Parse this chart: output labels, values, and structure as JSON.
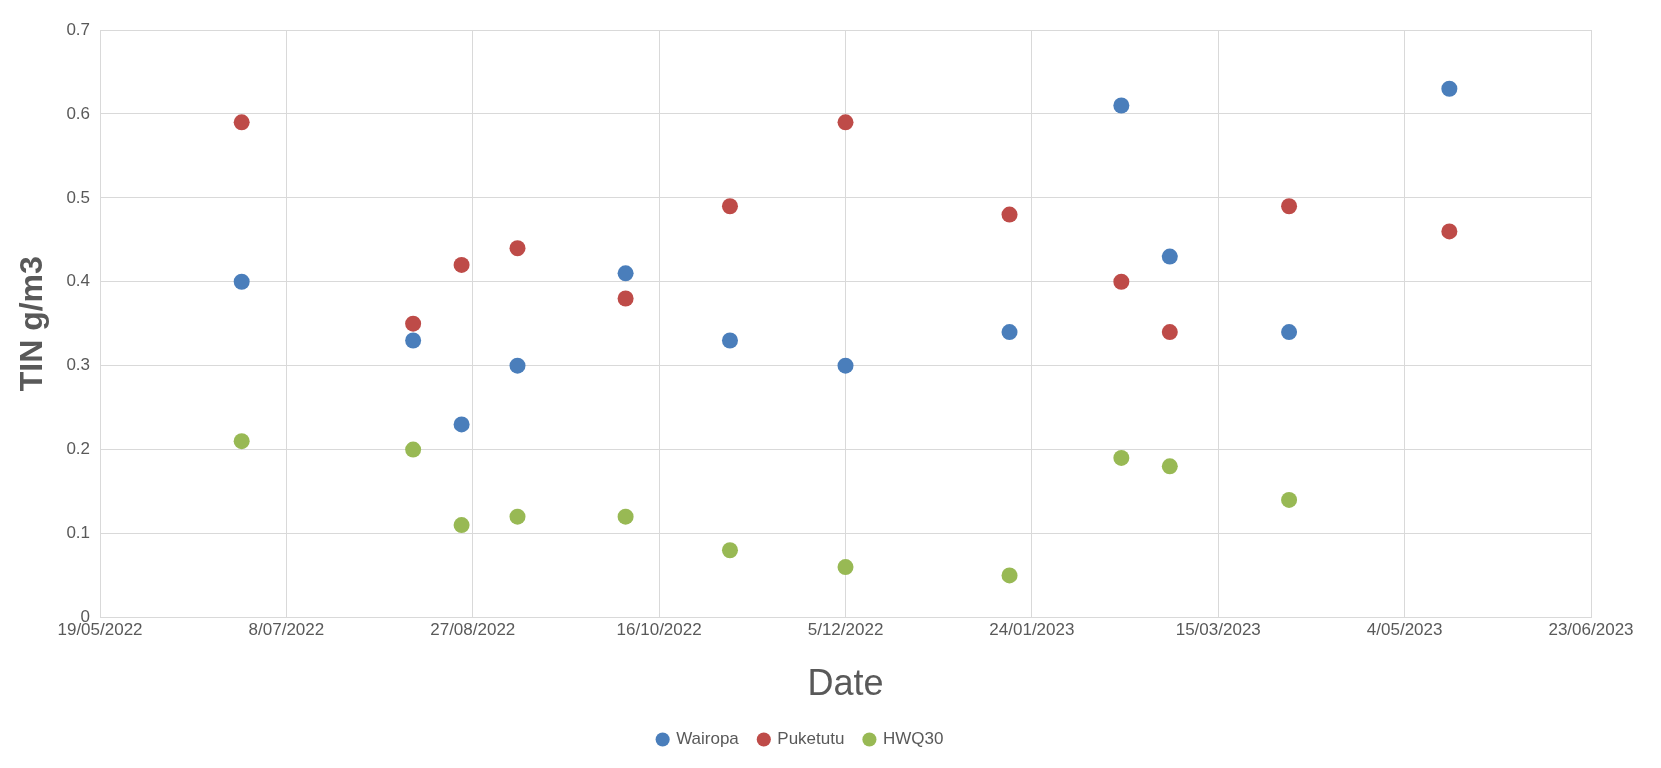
{
  "chart_data": {
    "type": "scatter",
    "xlabel": "Date",
    "ylabel": "TIN g/m3",
    "x": [
      "2022-06-26",
      "2022-08-11",
      "2022-08-24",
      "2022-09-08",
      "2022-10-07",
      "2022-11-04",
      "2022-12-05",
      "2023-01-18",
      "2023-02-17",
      "2023-03-02",
      "2023-04-03",
      "2023-05-16"
    ],
    "series": [
      {
        "name": "Wairopa",
        "color": "#4a7ebb",
        "values": [
          0.4,
          0.33,
          0.23,
          0.3,
          0.41,
          0.33,
          0.3,
          0.34,
          0.61,
          0.43,
          0.34,
          0.63
        ]
      },
      {
        "name": "Puketutu",
        "color": "#be4b48",
        "values": [
          0.59,
          0.35,
          0.42,
          0.44,
          0.38,
          0.49,
          0.59,
          0.48,
          0.4,
          0.34,
          0.49,
          0.46
        ]
      },
      {
        "name": "HWQ30",
        "color": "#98b954",
        "values": [
          0.21,
          0.2,
          0.11,
          0.12,
          0.12,
          0.08,
          0.06,
          0.05,
          0.19,
          0.18,
          0.14,
          null
        ]
      }
    ],
    "xlim": [
      "2022-05-19",
      "2023-06-23"
    ],
    "xticks": [
      {
        "value": "2022-05-19",
        "label": "19/05/2022"
      },
      {
        "value": "2022-07-08",
        "label": "8/07/2022"
      },
      {
        "value": "2022-08-27",
        "label": "27/08/2022"
      },
      {
        "value": "2022-10-16",
        "label": "16/10/2022"
      },
      {
        "value": "2022-12-05",
        "label": "5/12/2022"
      },
      {
        "value": "2023-01-24",
        "label": "24/01/2023"
      },
      {
        "value": "2023-03-15",
        "label": "15/03/2023"
      },
      {
        "value": "2023-05-04",
        "label": "4/05/2023"
      },
      {
        "value": "2023-06-23",
        "label": "23/06/2023"
      }
    ],
    "ylim": [
      0,
      0.7
    ],
    "yticks": [
      0,
      0.1,
      0.2,
      0.3,
      0.4,
      0.5,
      0.6,
      0.7
    ],
    "grid": true,
    "legend": "bottom",
    "marker": "circle"
  }
}
